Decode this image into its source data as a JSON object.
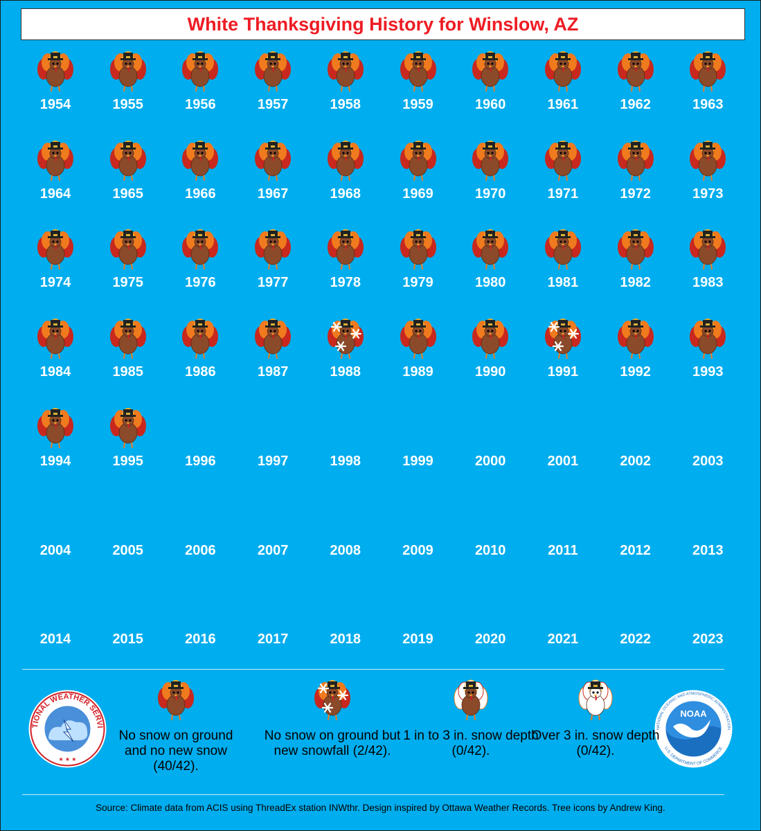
{
  "title": "White Thanksgiving History for Winslow, AZ",
  "years": [
    {
      "year": "1954",
      "category": "no_snow"
    },
    {
      "year": "1955",
      "category": "no_snow"
    },
    {
      "year": "1956",
      "category": "no_snow"
    },
    {
      "year": "1957",
      "category": "no_snow"
    },
    {
      "year": "1958",
      "category": "no_snow"
    },
    {
      "year": "1959",
      "category": "no_snow"
    },
    {
      "year": "1960",
      "category": "no_snow"
    },
    {
      "year": "1961",
      "category": "no_snow"
    },
    {
      "year": "1962",
      "category": "no_snow"
    },
    {
      "year": "1963",
      "category": "no_snow"
    },
    {
      "year": "1964",
      "category": "no_snow"
    },
    {
      "year": "1965",
      "category": "no_snow"
    },
    {
      "year": "1966",
      "category": "no_snow"
    },
    {
      "year": "1967",
      "category": "no_snow"
    },
    {
      "year": "1968",
      "category": "no_snow"
    },
    {
      "year": "1969",
      "category": "no_snow"
    },
    {
      "year": "1970",
      "category": "no_snow"
    },
    {
      "year": "1971",
      "category": "no_snow"
    },
    {
      "year": "1972",
      "category": "no_snow"
    },
    {
      "year": "1973",
      "category": "no_snow"
    },
    {
      "year": "1974",
      "category": "no_snow"
    },
    {
      "year": "1975",
      "category": "no_snow"
    },
    {
      "year": "1976",
      "category": "no_snow"
    },
    {
      "year": "1977",
      "category": "no_snow"
    },
    {
      "year": "1978",
      "category": "no_snow"
    },
    {
      "year": "1979",
      "category": "no_snow"
    },
    {
      "year": "1980",
      "category": "no_snow"
    },
    {
      "year": "1981",
      "category": "no_snow"
    },
    {
      "year": "1982",
      "category": "no_snow"
    },
    {
      "year": "1983",
      "category": "no_snow"
    },
    {
      "year": "1984",
      "category": "no_snow"
    },
    {
      "year": "1985",
      "category": "no_snow"
    },
    {
      "year": "1986",
      "category": "no_snow"
    },
    {
      "year": "1987",
      "category": "no_snow"
    },
    {
      "year": "1988",
      "category": "new_snow"
    },
    {
      "year": "1989",
      "category": "no_snow"
    },
    {
      "year": "1990",
      "category": "no_snow"
    },
    {
      "year": "1991",
      "category": "new_snow"
    },
    {
      "year": "1992",
      "category": "no_snow"
    },
    {
      "year": "1993",
      "category": "no_snow"
    },
    {
      "year": "1994",
      "category": "no_snow"
    },
    {
      "year": "1995",
      "category": "no_snow"
    },
    {
      "year": "1996",
      "category": "none"
    },
    {
      "year": "1997",
      "category": "none"
    },
    {
      "year": "1998",
      "category": "none"
    },
    {
      "year": "1999",
      "category": "none"
    },
    {
      "year": "2000",
      "category": "none"
    },
    {
      "year": "2001",
      "category": "none"
    },
    {
      "year": "2002",
      "category": "none"
    },
    {
      "year": "2003",
      "category": "none"
    },
    {
      "year": "2004",
      "category": "none"
    },
    {
      "year": "2005",
      "category": "none"
    },
    {
      "year": "2006",
      "category": "none"
    },
    {
      "year": "2007",
      "category": "none"
    },
    {
      "year": "2008",
      "category": "none"
    },
    {
      "year": "2009",
      "category": "none"
    },
    {
      "year": "2010",
      "category": "none"
    },
    {
      "year": "2011",
      "category": "none"
    },
    {
      "year": "2012",
      "category": "none"
    },
    {
      "year": "2013",
      "category": "none"
    },
    {
      "year": "2014",
      "category": "none"
    },
    {
      "year": "2015",
      "category": "none"
    },
    {
      "year": "2016",
      "category": "none"
    },
    {
      "year": "2017",
      "category": "none"
    },
    {
      "year": "2018",
      "category": "none"
    },
    {
      "year": "2019",
      "category": "none"
    },
    {
      "year": "2020",
      "category": "none"
    },
    {
      "year": "2021",
      "category": "none"
    },
    {
      "year": "2022",
      "category": "none"
    },
    {
      "year": "2023",
      "category": "none"
    }
  ],
  "legend": [
    {
      "category": "no_snow",
      "icon": "turkey-icon",
      "text": "No snow on ground and no new snow (40/42)."
    },
    {
      "category": "new_snow",
      "icon": "turkey-snowflakes-icon",
      "text": "No snow on ground but new snowfall (2/42)."
    },
    {
      "category": "snow_1_3",
      "icon": "snowy-turkey-icon",
      "text": "1 in to 3 in. snow depth (0/42)."
    },
    {
      "category": "snow_over_3",
      "icon": "snow-covered-turkey-icon",
      "text": "Over 3 in. snow depth (0/42)."
    }
  ],
  "logos": {
    "nws": {
      "icon": "nws-logo",
      "text": "NATIONAL WEATHER SERVICE"
    },
    "noaa": {
      "icon": "noaa-logo",
      "center_text": "NOAA",
      "ring_text": "NATIONAL OCEANIC AND ATMOSPHERIC ADMINISTRATION",
      "bottom_text": "U.S. DEPARTMENT OF COMMERCE"
    }
  },
  "source": "Source: Climate data from ACIS using ThreadEx station INWthr. Design inspired by Ottawa Weather Records. Tree icons by Andrew King.",
  "colors": {
    "background": "#00adee",
    "title_text": "#ee1c24",
    "year_text": "#ffffff",
    "turkey_body": "#8b4a2a",
    "turkey_feather_red": "#c8281e",
    "turkey_feather_orange": "#f07a1e",
    "turkey_feather_yellow": "#f6b026"
  }
}
